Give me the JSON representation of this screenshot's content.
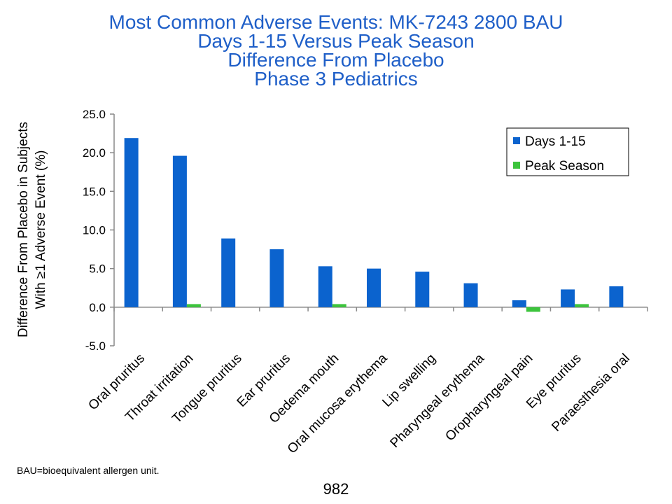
{
  "title_lines": [
    "Most Common Adverse Events: MK-7243 2800 BAU",
    "Days 1-15 Versus Peak Season",
    "Difference From Placebo",
    "Phase 3 Pediatrics"
  ],
  "footnote": "BAU=bioequivalent allergen unit.",
  "page_number": "982",
  "colors": {
    "series_days": "#0b63ce",
    "series_peak": "#3cc43c",
    "title": "#1f5fc8"
  },
  "chart_data": {
    "type": "bar",
    "ylabel_lines": [
      "Difference From Placebo in Subjects",
      "With ≥1 Adverse Event (%)"
    ],
    "xlabel": "",
    "ylim": [
      -5,
      25
    ],
    "yticks": [
      "-5.0",
      "0.0",
      "5.0",
      "10.0",
      "15.0",
      "20.0",
      "25.0"
    ],
    "grid": false,
    "legend_position": "top-right",
    "categories": [
      "Oral pruritus",
      "Throat irritation",
      "Tongue pruritus",
      "Ear pruritus",
      "Oedema mouth",
      "Oral mucosa erythema",
      "Lip swelling",
      "Pharyngeal erythema",
      "Oropharyngeal pain",
      "Eye pruritus",
      "Paraesthesia oral"
    ],
    "series": [
      {
        "name": "Days 1-15",
        "values": [
          21.9,
          19.6,
          8.9,
          7.5,
          5.3,
          5.0,
          4.6,
          3.1,
          0.9,
          2.3,
          2.7
        ]
      },
      {
        "name": "Peak Season",
        "values": [
          null,
          0.4,
          null,
          null,
          0.4,
          null,
          null,
          null,
          -0.6,
          0.4,
          null
        ]
      }
    ]
  }
}
